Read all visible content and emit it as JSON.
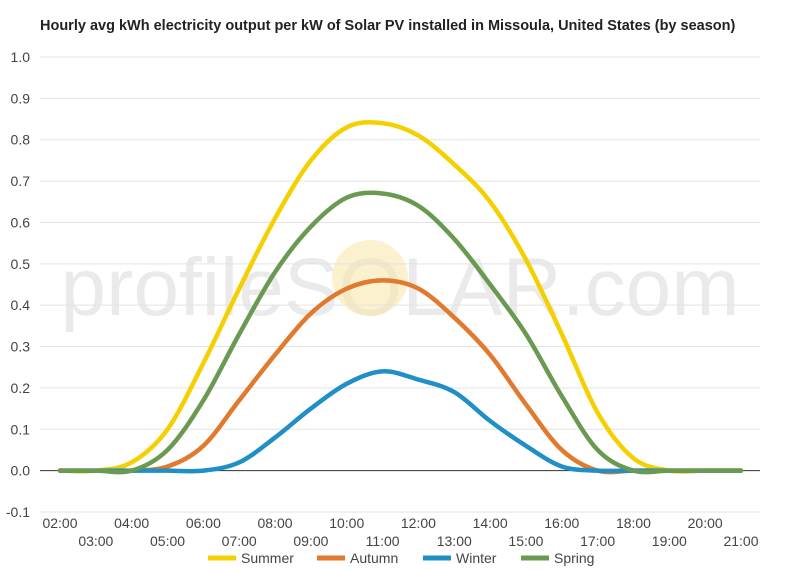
{
  "chart_data": {
    "type": "line",
    "title": "Hourly avg kWh electricity output per kW of Solar PV installed in Missoula, United States (by season)",
    "xlabel": "",
    "ylabel": "",
    "x": [
      "02:00",
      "03:00",
      "04:00",
      "05:00",
      "06:00",
      "07:00",
      "08:00",
      "09:00",
      "10:00",
      "11:00",
      "12:00",
      "13:00",
      "14:00",
      "15:00",
      "16:00",
      "17:00",
      "18:00",
      "19:00",
      "20:00",
      "21:00"
    ],
    "ylim": [
      -0.1,
      1.0
    ],
    "yticks": [
      "1.0",
      "0.9",
      "0.8",
      "0.7",
      "0.6",
      "0.5",
      "0.4",
      "0.3",
      "0.2",
      "0.1",
      "0.0",
      "-0.1"
    ],
    "series": [
      {
        "name": "Summer",
        "color": "#f5d000",
        "values": [
          0.0,
          0.0,
          0.02,
          0.1,
          0.26,
          0.44,
          0.61,
          0.75,
          0.83,
          0.84,
          0.81,
          0.74,
          0.65,
          0.51,
          0.33,
          0.14,
          0.03,
          0.0,
          0.0,
          0.0
        ]
      },
      {
        "name": "Autumn",
        "color": "#e07a2e",
        "values": [
          0.0,
          0.0,
          0.0,
          0.01,
          0.06,
          0.17,
          0.28,
          0.38,
          0.44,
          0.46,
          0.44,
          0.37,
          0.28,
          0.16,
          0.05,
          0.0,
          0.0,
          0.0,
          0.0,
          0.0
        ]
      },
      {
        "name": "Winter",
        "color": "#1f8fc6",
        "values": [
          0.0,
          0.0,
          0.0,
          0.0,
          0.0,
          0.02,
          0.08,
          0.15,
          0.21,
          0.24,
          0.22,
          0.19,
          0.12,
          0.06,
          0.01,
          0.0,
          0.0,
          0.0,
          0.0,
          0.0
        ]
      },
      {
        "name": "Spring",
        "color": "#6a9a52",
        "values": [
          0.0,
          0.0,
          0.0,
          0.05,
          0.17,
          0.33,
          0.48,
          0.59,
          0.66,
          0.67,
          0.64,
          0.56,
          0.45,
          0.33,
          0.18,
          0.05,
          0.0,
          0.0,
          0.0,
          0.0
        ]
      }
    ],
    "grid": true,
    "legend_position": "bottom"
  },
  "watermark": "profileSOLAR.com"
}
